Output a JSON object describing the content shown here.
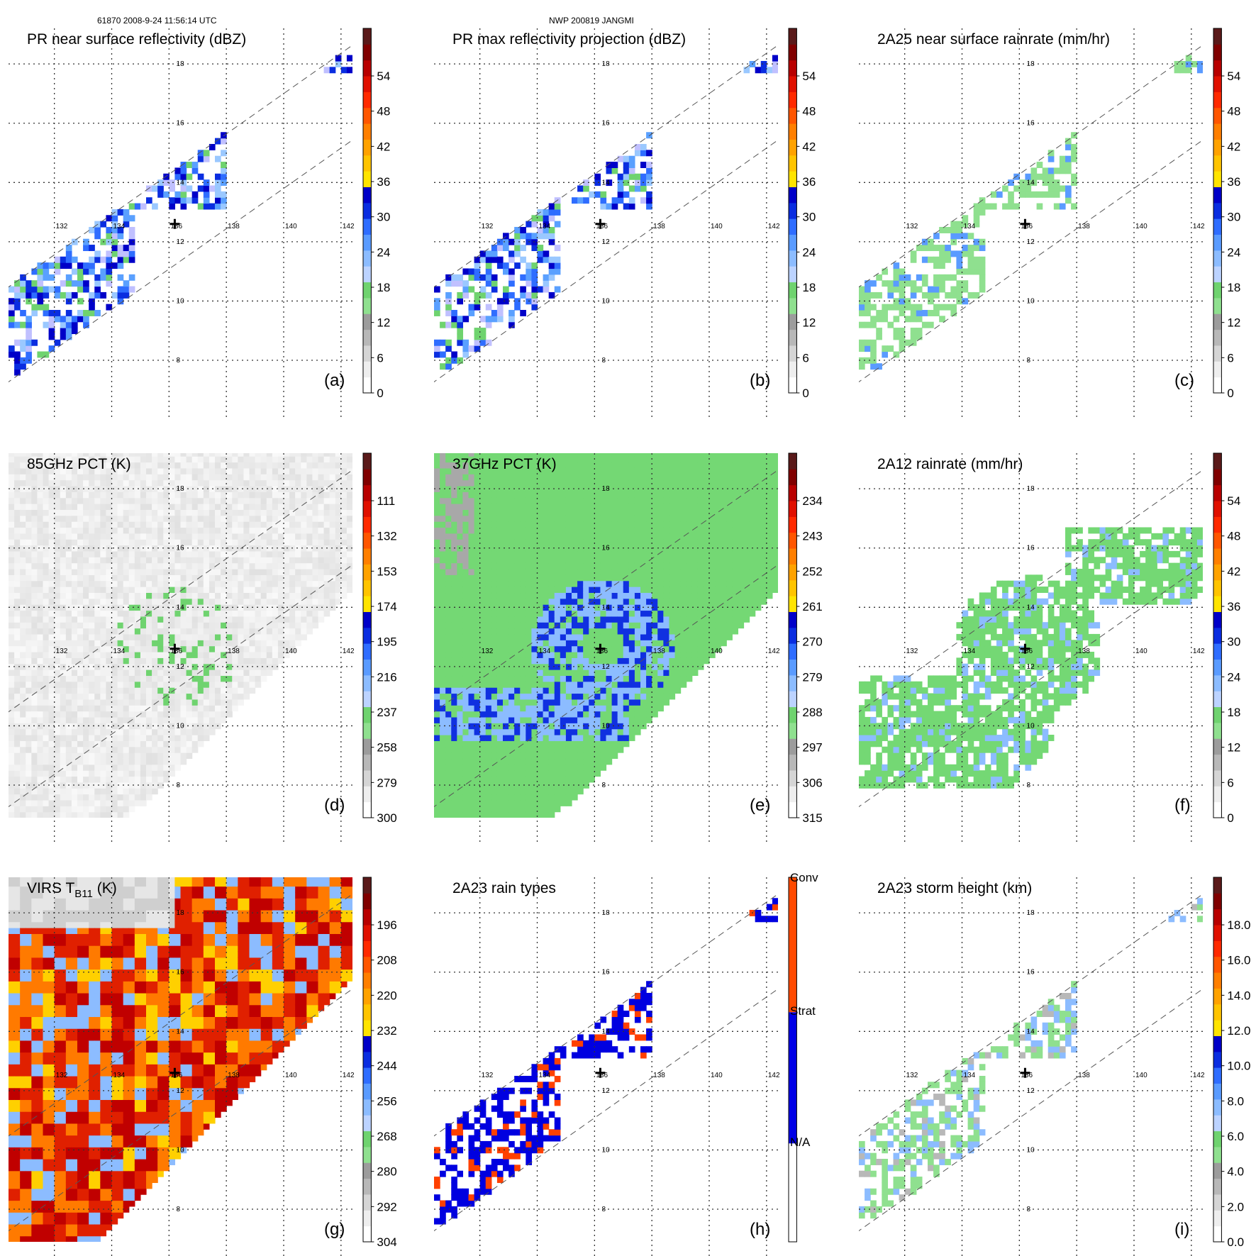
{
  "header": {
    "orbit_time": "61870 2008-9-24 11:56:14 UTC",
    "storm": "NWP 200819 JANGMI"
  },
  "chart_data": [
    {
      "id": "a",
      "type": "heatmap",
      "title": "PR near surface reflectivity (dBZ)",
      "panel_label": "(a)",
      "swath": "pr",
      "colorbar": {
        "ticks": [
          "0",
          "6",
          "12",
          "18",
          "24",
          "30",
          "36",
          "42",
          "48",
          "54"
        ],
        "ylim": [
          0,
          60
        ]
      }
    },
    {
      "id": "b",
      "type": "heatmap",
      "title": "PR max reflectivity projection (dBZ)",
      "panel_label": "(b)",
      "swath": "pr",
      "colorbar": {
        "ticks": [
          "0",
          "6",
          "12",
          "18",
          "24",
          "30",
          "36",
          "42",
          "48",
          "54"
        ],
        "ylim": [
          0,
          60
        ]
      }
    },
    {
      "id": "c",
      "type": "heatmap",
      "title": "2A25 near surface rainrate (mm/hr)",
      "panel_label": "(c)",
      "swath": "pr",
      "colorbar": {
        "ticks": [
          "0",
          "6",
          "12",
          "18",
          "24",
          "30",
          "36",
          "42",
          "48",
          "54"
        ],
        "ylim": [
          0,
          60
        ]
      }
    },
    {
      "id": "d",
      "type": "heatmap",
      "title": "85GHz PCT (K)",
      "panel_label": "(d)",
      "swath": "tmi",
      "colorbar": {
        "ticks": [
          "300",
          "279",
          "258",
          "237",
          "216",
          "195",
          "174",
          "153",
          "132",
          "111"
        ],
        "ylim": [
          300,
          90
        ]
      }
    },
    {
      "id": "e",
      "type": "heatmap",
      "title": "37GHz PCT (K)",
      "panel_label": "(e)",
      "swath": "tmi",
      "colorbar": {
        "ticks": [
          "315",
          "306",
          "297",
          "288",
          "279",
          "270",
          "261",
          "252",
          "243",
          "234"
        ],
        "ylim": [
          315,
          225
        ]
      }
    },
    {
      "id": "f",
      "type": "heatmap",
      "title": "2A12 rainrate (mm/hr)",
      "panel_label": "(f)",
      "swath": "tmi",
      "colorbar": {
        "ticks": [
          "0",
          "6",
          "12",
          "18",
          "24",
          "30",
          "36",
          "42",
          "48",
          "54"
        ],
        "ylim": [
          0,
          60
        ]
      }
    },
    {
      "id": "g",
      "type": "heatmap",
      "title": "VIRS T",
      "title_sub": "B11",
      "title_suffix": " (K)",
      "panel_label": "(g)",
      "swath": "virs",
      "colorbar": {
        "ticks": [
          "304",
          "292",
          "280",
          "268",
          "256",
          "244",
          "232",
          "220",
          "208",
          "196"
        ],
        "ylim": [
          304,
          184
        ]
      }
    },
    {
      "id": "h",
      "type": "heatmap",
      "title": "2A23 rain types",
      "panel_label": "(h)",
      "swath": "pr",
      "colorbar": {
        "categories": [
          "N/A",
          "Strat",
          "Conv"
        ]
      }
    },
    {
      "id": "i",
      "type": "heatmap",
      "title": "2A23 storm height (km)",
      "panel_label": "(i)",
      "swath": "pr",
      "colorbar": {
        "ticks": [
          "0.0",
          "2.0",
          "4.0",
          "6.0",
          "8.0",
          "10.0",
          "12.0",
          "14.0",
          "16.0",
          "18.0"
        ],
        "ylim": [
          0,
          20
        ]
      }
    }
  ],
  "map": {
    "lon_labels": [
      "132",
      "134",
      "136",
      "138",
      "140",
      "142"
    ],
    "lat_labels": [
      "8",
      "10",
      "12",
      "14",
      "16",
      "18"
    ],
    "storm_center": {
      "lon": 136.2,
      "lat": 12.6
    },
    "lon_range": [
      130.4,
      142.4
    ],
    "lat_range": [
      6.9,
      19.2
    ]
  }
}
